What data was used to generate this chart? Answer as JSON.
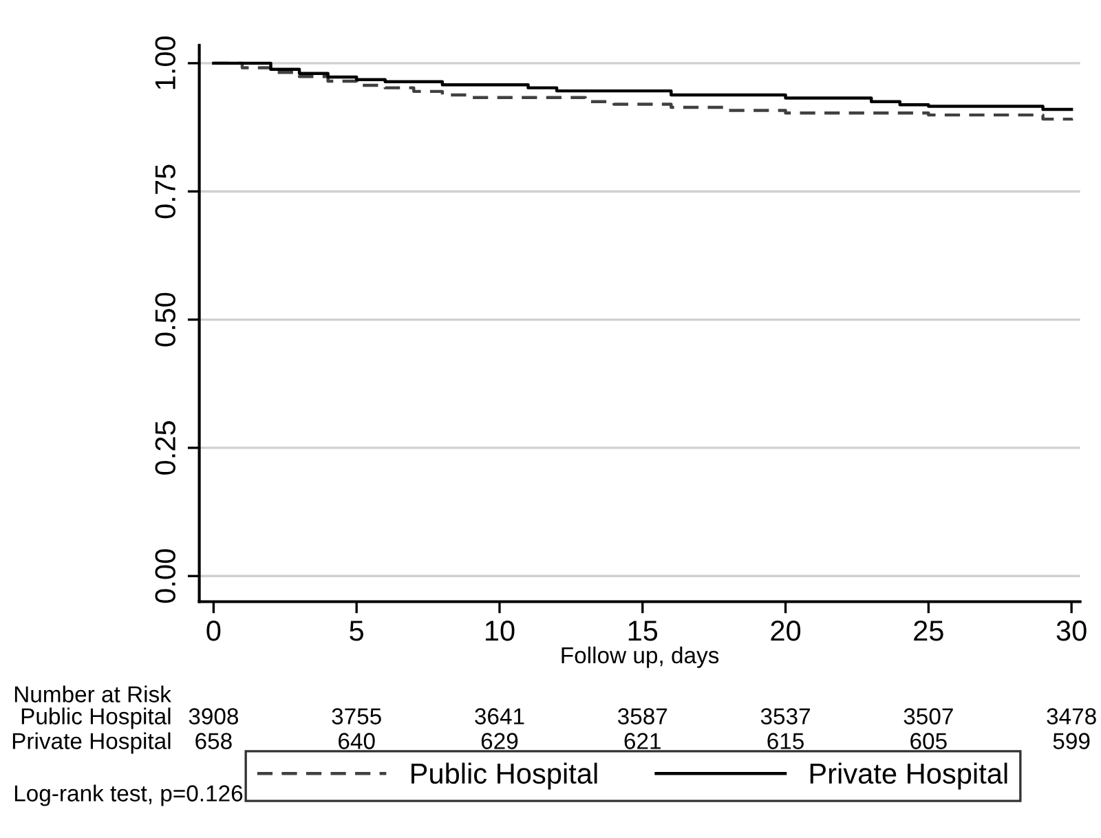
{
  "chart_data": {
    "type": "step",
    "xlabel": "Follow up, days",
    "xlim": [
      -0.5,
      30.3
    ],
    "xticks": [
      0,
      5,
      10,
      15,
      20,
      25,
      30
    ],
    "ylim": [
      -0.05,
      1.035
    ],
    "yticks": [
      {
        "value": 0,
        "label": "0.00"
      },
      {
        "value": 0.25,
        "label": "0.25"
      },
      {
        "value": 0.5,
        "label": "0.50"
      },
      {
        "value": 0.75,
        "label": "0.75"
      },
      {
        "value": 1,
        "label": "1.00"
      }
    ],
    "grid": "y",
    "legend": "bottom",
    "series": [
      {
        "name": "Public Hospital",
        "color": "#404040",
        "line_style": "dashed",
        "x": [
          0,
          1,
          2,
          3,
          4,
          5,
          6,
          7,
          8,
          9,
          13,
          14,
          16,
          18,
          20,
          25,
          29,
          30
        ],
        "values": [
          1.0,
          0.991,
          0.982,
          0.974,
          0.965,
          0.957,
          0.952,
          0.945,
          0.938,
          0.933,
          0.925,
          0.92,
          0.914,
          0.908,
          0.903,
          0.899,
          0.891,
          0.888
        ]
      },
      {
        "name": "Private Hospital",
        "color": "#000000",
        "line_style": "solid",
        "x": [
          0,
          2,
          3,
          4,
          5,
          6,
          8,
          11,
          12,
          16,
          20,
          23,
          24,
          25,
          29,
          30
        ],
        "values": [
          1.0,
          0.988,
          0.98,
          0.973,
          0.968,
          0.964,
          0.958,
          0.952,
          0.946,
          0.938,
          0.932,
          0.925,
          0.919,
          0.916,
          0.91,
          0.91
        ]
      }
    ],
    "annotations": [
      "Number at Risk",
      "Public Hospital",
      "3908",
      "3755",
      "3641",
      "3587",
      "3537",
      "3507",
      "3478",
      "Private Hospital",
      "658",
      "640",
      "629",
      "621",
      "615",
      "605",
      "599",
      "Log-rank test, p=0.126"
    ]
  }
}
